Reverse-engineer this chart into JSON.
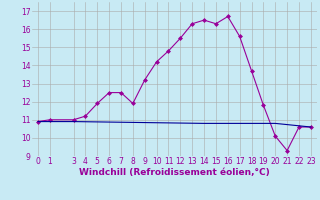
{
  "xlabel": "Windchill (Refroidissement éolien,°C)",
  "line1_x": [
    0,
    1,
    3,
    4,
    5,
    6,
    7,
    8,
    9,
    10,
    11,
    12,
    13,
    14,
    15,
    16,
    17,
    18,
    19,
    20,
    21,
    22,
    23
  ],
  "line1_y": [
    10.9,
    11.0,
    11.0,
    11.2,
    11.9,
    12.5,
    12.5,
    11.9,
    13.2,
    14.2,
    14.8,
    15.5,
    16.3,
    16.5,
    16.3,
    16.7,
    15.6,
    13.7,
    11.8,
    10.1,
    9.3,
    10.6,
    10.6
  ],
  "line2_x": [
    0,
    3,
    14,
    20,
    23
  ],
  "line2_y": [
    10.9,
    10.9,
    10.8,
    10.8,
    10.6
  ],
  "line1_color": "#990099",
  "line2_color": "#000099",
  "bg_color": "#c8eaf4",
  "grid_color": "#aaaaaa",
  "ylim": [
    9,
    17.5
  ],
  "xlim": [
    -0.5,
    23.5
  ],
  "xticks": [
    0,
    1,
    3,
    4,
    5,
    6,
    7,
    8,
    9,
    10,
    11,
    12,
    13,
    14,
    15,
    16,
    17,
    18,
    19,
    20,
    21,
    22,
    23
  ],
  "yticks": [
    9,
    10,
    11,
    12,
    13,
    14,
    15,
    16,
    17
  ],
  "tick_fontsize": 5.5,
  "xlabel_fontsize": 6.5,
  "marker": "D",
  "markersize": 2.0
}
